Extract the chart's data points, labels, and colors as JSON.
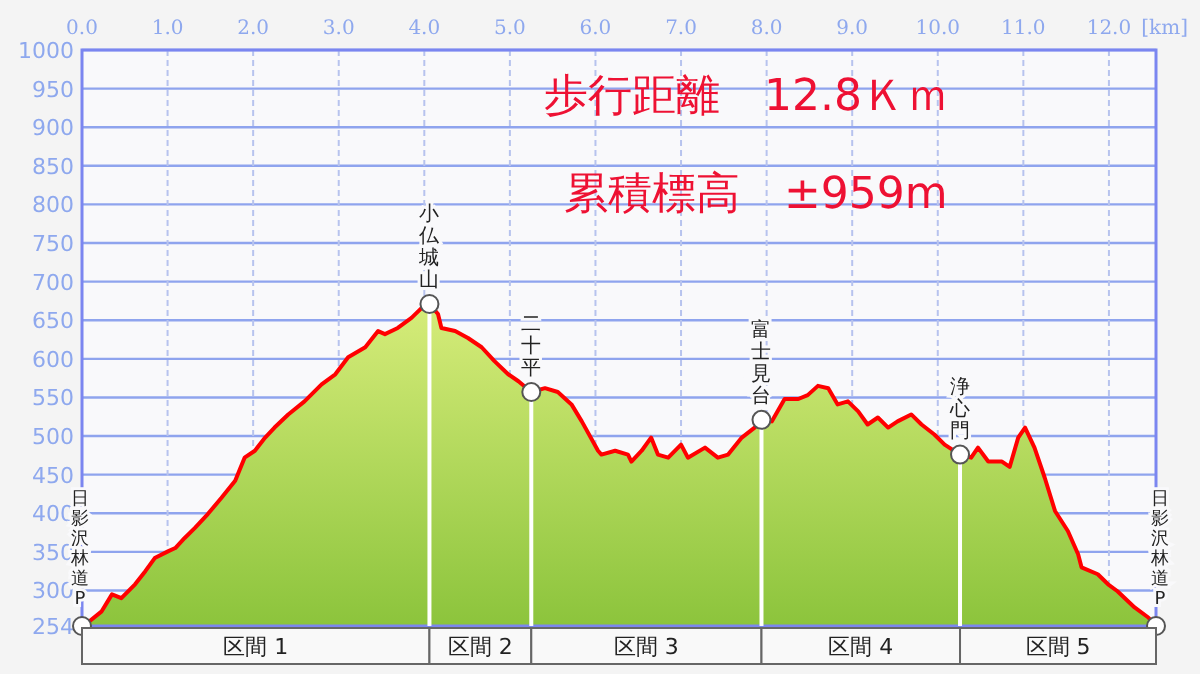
{
  "chart_data": {
    "type": "area",
    "title": "歩行距離　12.8Ｋｍ",
    "subtitle": "累積標高　±959m",
    "xlabel": "[km]",
    "xlim": [
      0,
      12.55
    ],
    "ylim": [
      254,
      1000
    ],
    "xticks": [
      {
        "value": 0,
        "label": "0.0"
      },
      {
        "value": 1,
        "label": "1.0"
      },
      {
        "value": 2,
        "label": "2.0"
      },
      {
        "value": 3,
        "label": "3.0"
      },
      {
        "value": 4,
        "label": "4.0"
      },
      {
        "value": 5,
        "label": "5.0"
      },
      {
        "value": 6,
        "label": "6.0"
      },
      {
        "value": 7,
        "label": "7.0"
      },
      {
        "value": 8,
        "label": "8.0"
      },
      {
        "value": 9,
        "label": "9.0"
      },
      {
        "value": 10,
        "label": "10.0"
      },
      {
        "value": 11,
        "label": "11.0"
      },
      {
        "value": 12,
        "label": "12.0"
      }
    ],
    "yticks": [
      254,
      300,
      350,
      400,
      450,
      500,
      550,
      600,
      650,
      700,
      750,
      800,
      850,
      900,
      950,
      1000
    ],
    "grid": true,
    "ref_lines": [
      {
        "axis": "x",
        "value": 4.06,
        "color": "#ffffff"
      },
      {
        "axis": "x",
        "value": 5.25,
        "color": "#ffffff"
      },
      {
        "axis": "x",
        "value": 7.94,
        "color": "#ffffff"
      },
      {
        "axis": "x",
        "value": 10.26,
        "color": "#ffffff"
      }
    ],
    "series": [
      {
        "color": "#ff0000",
        "x": [
          0,
          0.04,
          0.23,
          0.35,
          0.46,
          0.62,
          0.74,
          0.85,
          1.01,
          1.09,
          1.2,
          1.32,
          1.47,
          1.63,
          1.79,
          1.9,
          2.02,
          2.14,
          2.25,
          2.41,
          2.6,
          2.8,
          2.96,
          3.11,
          3.31,
          3.46,
          3.54,
          3.69,
          3.85,
          3.97,
          4.06,
          4.16,
          4.2,
          4.36,
          4.51,
          4.67,
          4.82,
          4.98,
          5.1,
          5.25,
          5.41,
          5.56,
          5.72,
          5.84,
          6.03,
          6.07,
          6.23,
          6.38,
          6.42,
          6.54,
          6.65,
          6.73,
          6.85,
          7.0,
          7.08,
          7.28,
          7.43,
          7.55,
          7.71,
          7.86,
          7.94,
          8.06,
          8.21,
          8.37,
          8.48,
          8.6,
          8.72,
          8.83,
          8.95,
          9.07,
          9.18,
          9.3,
          9.42,
          9.53,
          9.69,
          9.81,
          9.96,
          10.08,
          10.26,
          10.39,
          10.47,
          10.59,
          10.75,
          10.84,
          10.94,
          11.02,
          11.13,
          11.25,
          11.37,
          11.52,
          11.64,
          11.68,
          11.87,
          11.99,
          12.1,
          12.3,
          12.46,
          12.55
        ],
        "values": [
          254,
          256,
          273,
          295,
          290,
          308,
          325,
          342,
          351,
          355,
          368,
          381,
          399,
          420,
          442,
          472,
          481,
          498,
          511,
          528,
          545,
          567,
          580,
          602,
          615,
          636,
          632,
          640,
          653,
          666,
          671,
          658,
          640,
          636,
          627,
          615,
          597,
          580,
          571,
          557,
          562,
          557,
          541,
          519,
          481,
          476,
          481,
          476,
          467,
          481,
          498,
          476,
          472,
          489,
          472,
          485,
          472,
          476,
          498,
          511,
          521,
          519,
          548,
          548,
          553,
          565,
          562,
          541,
          545,
          532,
          515,
          524,
          511,
          519,
          528,
          515,
          502,
          489,
          476,
          472,
          485,
          467,
          467,
          460,
          498,
          511,
          485,
          446,
          403,
          377,
          347,
          330,
          321,
          308,
          299,
          278,
          265,
          254
        ]
      }
    ],
    "annotations": [
      {
        "text": "日影沢林道P",
        "x": 0,
        "y": 254
      },
      {
        "text": "小仏城山",
        "x": 4.06,
        "y": 671
      },
      {
        "text": "二十平",
        "x": 5.25,
        "y": 557
      },
      {
        "text": "富士見台",
        "x": 7.94,
        "y": 521
      },
      {
        "text": "浄心門",
        "x": 10.26,
        "y": 476
      },
      {
        "text": "日影沢林道P",
        "x": 12.55,
        "y": 254
      },
      "区間 1",
      "区間 2",
      "区間 3",
      "区間 4",
      "区間 5"
    ]
  }
}
